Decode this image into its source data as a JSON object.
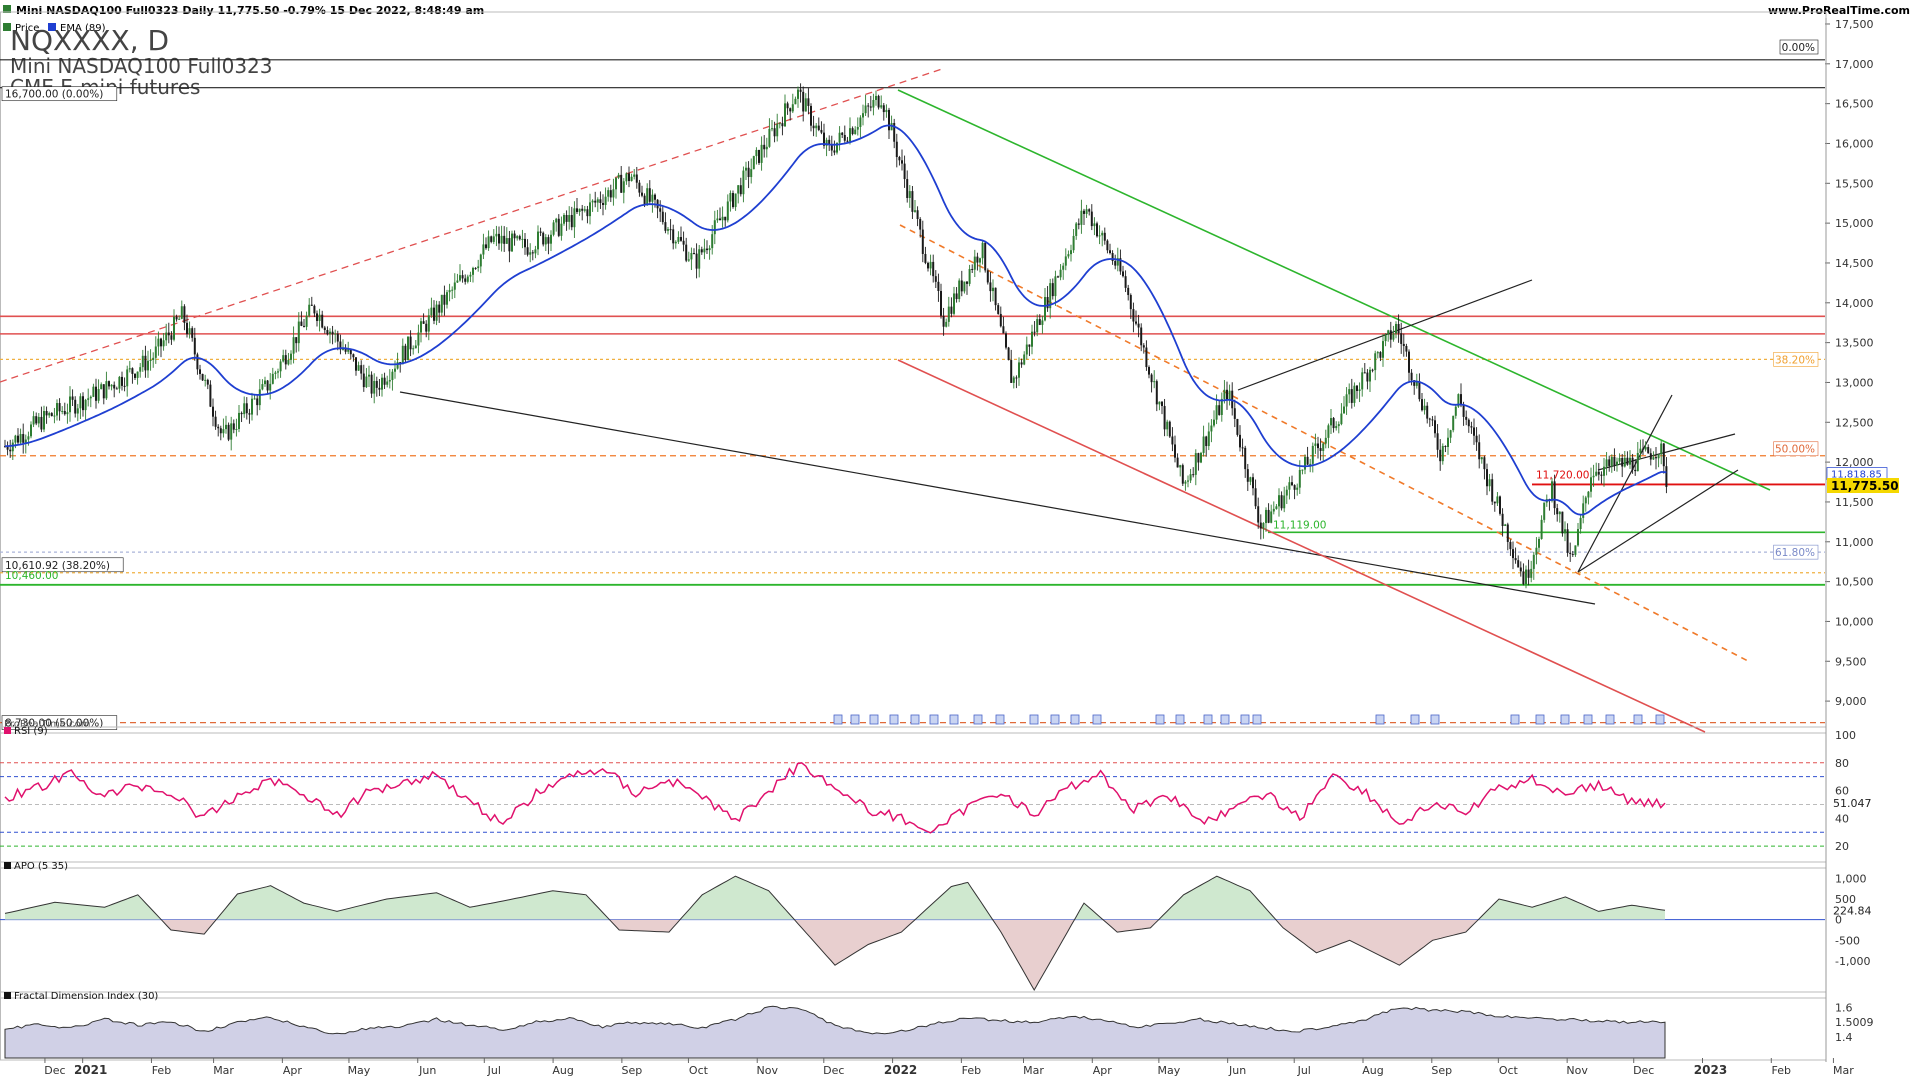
{
  "header": {
    "title_line": "Mini NASDAQ100 Full0323 Daily 11,775.50 -0.79% 15 Dec 2022, 8:48:49 am",
    "site": "www.ProRealTime.com",
    "legend_price": "Price",
    "legend_ema": "EMA (89)",
    "symbol": "NQXXXX, D",
    "name": "Mini NASDAQ100 Full0323",
    "subtitle": "CME E-mini futures",
    "watermark": "ProRealTime.com"
  },
  "colors": {
    "candle_up": "#2e7d32",
    "candle_down": "#1a1a1a",
    "ema": "#1f3fd1",
    "rsi": "#e0116d",
    "green_line": "#2db52d",
    "red_line": "#e05050",
    "orange_dash": "#f07a2a",
    "black_line": "#222222",
    "apo_pos_fill": "#cfe8cf",
    "apo_neg_fill": "#e8cfcf",
    "fdi_fill": "#d0d0e6"
  },
  "chart_data": [
    {
      "type": "candlestick",
      "panel": "price",
      "title": "NQXXXX, D",
      "subtitle": "Mini NASDAQ100 Full0323",
      "y_ticks": [
        "17,500",
        "17,000",
        "16,500",
        "16,000",
        "15,500",
        "15,000",
        "14,500",
        "14,000",
        "13,500",
        "13,000",
        "12,500",
        "12,000",
        "11,500",
        "11,000",
        "10,500",
        "10,000",
        "9,500",
        "9,000"
      ],
      "y_range": [
        8700,
        17550
      ],
      "x_ticks": [
        "Dec",
        "2021",
        "Feb",
        "Mar",
        "Apr",
        "May",
        "Jun",
        "Jul",
        "Aug",
        "Sep",
        "Oct",
        "Nov",
        "Dec",
        "2022",
        "Feb",
        "Mar",
        "Apr",
        "May",
        "Jun",
        "Jul",
        "Aug",
        "Sep",
        "Oct",
        "Nov",
        "Dec",
        "2023",
        "Feb",
        "Mar"
      ],
      "price_path": [
        [
          "2020-11-27",
          12200
        ],
        [
          "2020-12-15",
          12550
        ],
        [
          "2021-01-10",
          12900
        ],
        [
          "2021-02-01",
          13300
        ],
        [
          "2021-02-15",
          13850
        ],
        [
          "2021-03-05",
          12300
        ],
        [
          "2021-03-25",
          12950
        ],
        [
          "2021-04-15",
          13950
        ],
        [
          "2021-05-12",
          12900
        ],
        [
          "2021-06-01",
          13600
        ],
        [
          "2021-07-05",
          14800
        ],
        [
          "2021-07-20",
          14700
        ],
        [
          "2021-08-15",
          15150
        ],
        [
          "2021-09-05",
          15600
        ],
        [
          "2021-10-04",
          14500
        ],
        [
          "2021-10-25",
          15500
        ],
        [
          "2021-11-19",
          16650
        ],
        [
          "2021-12-03",
          15900
        ],
        [
          "2021-12-27",
          16600
        ],
        [
          "2022-01-24",
          13800
        ],
        [
          "2022-02-10",
          14700
        ],
        [
          "2022-02-24",
          13000
        ],
        [
          "2022-03-29",
          15200
        ],
        [
          "2022-04-15",
          14300
        ],
        [
          "2022-05-12",
          11700
        ],
        [
          "2022-06-01",
          12900
        ],
        [
          "2022-06-16",
          11200
        ],
        [
          "2022-07-05",
          11900
        ],
        [
          "2022-08-16",
          13700
        ],
        [
          "2022-09-05",
          12100
        ],
        [
          "2022-09-13",
          12800
        ],
        [
          "2022-10-13",
          10500
        ],
        [
          "2022-10-25",
          11700
        ],
        [
          "2022-11-03",
          10700
        ],
        [
          "2022-11-12",
          11900
        ],
        [
          "2022-12-01",
          12000
        ],
        [
          "2022-12-13",
          12200
        ],
        [
          "2022-12-15",
          11775.5
        ]
      ],
      "ema_period": 89,
      "ema_last": "11,818.85",
      "last_price": "11,775.50",
      "annotations": {
        "fib_top": "16,700.00 (0.00%)",
        "fib_top_tag": "0.00%",
        "fib_382": "38.20%",
        "fib_500": "50.00%",
        "fib_618": "61.80%",
        "left_382": "10,610.92 (38.20%)",
        "left_10460": "10,460.00",
        "left_bottom": "8,730.00 (50.00%)",
        "level_11720": "11,720.00",
        "level_11119": "11,119.00"
      },
      "levels": {
        "fib_top": 16700,
        "fib_382": 13290,
        "fib_500": 12080,
        "fib_618": 10870,
        "red_upper": 13830,
        "red_lower": 13610,
        "red_short": 11720,
        "green_11119": 11119,
        "green_10460": 10460,
        "orange_10611": 10611,
        "left_8730": 8730,
        "top_black": 17050
      }
    },
    {
      "type": "line",
      "panel": "rsi",
      "title": "RSI (9)",
      "y_ticks": [
        "100",
        "80",
        "60",
        "40",
        "20"
      ],
      "y_range": [
        10,
        100
      ],
      "levels": [
        80,
        70,
        30,
        20
      ],
      "last": "51.047",
      "path": [
        [
          0,
          55
        ],
        [
          0.02,
          62
        ],
        [
          0.04,
          72
        ],
        [
          0.06,
          56
        ],
        [
          0.08,
          64
        ],
        [
          0.1,
          58
        ],
        [
          0.12,
          40
        ],
        [
          0.14,
          56
        ],
        [
          0.16,
          68
        ],
        [
          0.18,
          58
        ],
        [
          0.2,
          42
        ],
        [
          0.22,
          60
        ],
        [
          0.24,
          66
        ],
        [
          0.26,
          72
        ],
        [
          0.28,
          52
        ],
        [
          0.3,
          36
        ],
        [
          0.32,
          58
        ],
        [
          0.34,
          70
        ],
        [
          0.36,
          76
        ],
        [
          0.38,
          58
        ],
        [
          0.4,
          68
        ],
        [
          0.42,
          56
        ],
        [
          0.44,
          38
        ],
        [
          0.46,
          60
        ],
        [
          0.48,
          80
        ],
        [
          0.5,
          62
        ],
        [
          0.52,
          46
        ],
        [
          0.54,
          40
        ],
        [
          0.56,
          30
        ],
        [
          0.58,
          48
        ],
        [
          0.6,
          60
        ],
        [
          0.62,
          42
        ],
        [
          0.64,
          62
        ],
        [
          0.66,
          72
        ],
        [
          0.68,
          46
        ],
        [
          0.7,
          58
        ],
        [
          0.72,
          38
        ],
        [
          0.74,
          46
        ],
        [
          0.76,
          58
        ],
        [
          0.78,
          40
        ],
        [
          0.8,
          72
        ],
        [
          0.82,
          58
        ],
        [
          0.84,
          36
        ],
        [
          0.86,
          50
        ],
        [
          0.88,
          44
        ],
        [
          0.9,
          62
        ],
        [
          0.92,
          68
        ],
        [
          0.94,
          58
        ],
        [
          0.96,
          64
        ],
        [
          0.98,
          52
        ],
        [
          1,
          51
        ]
      ]
    },
    {
      "type": "area",
      "panel": "apo",
      "title": "APO (5 35)",
      "y_ticks": [
        "1,000",
        "500",
        "0",
        "-500",
        "-1,000"
      ],
      "y_range": [
        -1700,
        1200
      ],
      "last": "224.84",
      "path": [
        [
          0,
          150
        ],
        [
          0.03,
          420
        ],
        [
          0.06,
          300
        ],
        [
          0.08,
          600
        ],
        [
          0.1,
          -250
        ],
        [
          0.12,
          -350
        ],
        [
          0.14,
          620
        ],
        [
          0.16,
          820
        ],
        [
          0.18,
          400
        ],
        [
          0.2,
          200
        ],
        [
          0.23,
          500
        ],
        [
          0.26,
          650
        ],
        [
          0.28,
          300
        ],
        [
          0.3,
          450
        ],
        [
          0.33,
          700
        ],
        [
          0.35,
          600
        ],
        [
          0.37,
          -250
        ],
        [
          0.4,
          -300
        ],
        [
          0.42,
          600
        ],
        [
          0.44,
          1050
        ],
        [
          0.46,
          700
        ],
        [
          0.48,
          -200
        ],
        [
          0.5,
          -1100
        ],
        [
          0.52,
          -600
        ],
        [
          0.54,
          -300
        ],
        [
          0.57,
          800
        ],
        [
          0.58,
          900
        ],
        [
          0.6,
          -300
        ],
        [
          0.62,
          -1700
        ],
        [
          0.63,
          -1000
        ],
        [
          0.65,
          400
        ],
        [
          0.67,
          -300
        ],
        [
          0.69,
          -200
        ],
        [
          0.71,
          600
        ],
        [
          0.73,
          1050
        ],
        [
          0.75,
          700
        ],
        [
          0.77,
          -200
        ],
        [
          0.79,
          -800
        ],
        [
          0.81,
          -500
        ],
        [
          0.84,
          -1100
        ],
        [
          0.86,
          -500
        ],
        [
          0.88,
          -300
        ],
        [
          0.9,
          500
        ],
        [
          0.92,
          300
        ],
        [
          0.94,
          550
        ],
        [
          0.96,
          200
        ],
        [
          0.98,
          350
        ],
        [
          1,
          225
        ]
      ]
    },
    {
      "type": "area",
      "panel": "fdi",
      "title": "Fractal Dimension Index (30)",
      "y_ticks": [
        "1.6",
        "1.5009",
        "1.4"
      ],
      "y_range": [
        1.3,
        1.65
      ],
      "last": "1.5009",
      "path": [
        [
          0,
          1.45
        ],
        [
          0.02,
          1.49
        ],
        [
          0.04,
          1.46
        ],
        [
          0.06,
          1.52
        ],
        [
          0.08,
          1.48
        ],
        [
          0.1,
          1.5
        ],
        [
          0.12,
          1.44
        ],
        [
          0.14,
          1.5
        ],
        [
          0.16,
          1.53
        ],
        [
          0.18,
          1.47
        ],
        [
          0.2,
          1.42
        ],
        [
          0.22,
          1.46
        ],
        [
          0.24,
          1.47
        ],
        [
          0.26,
          1.52
        ],
        [
          0.28,
          1.48
        ],
        [
          0.3,
          1.45
        ],
        [
          0.32,
          1.5
        ],
        [
          0.34,
          1.53
        ],
        [
          0.36,
          1.47
        ],
        [
          0.38,
          1.5
        ],
        [
          0.4,
          1.49
        ],
        [
          0.42,
          1.46
        ],
        [
          0.44,
          1.52
        ],
        [
          0.46,
          1.6
        ],
        [
          0.48,
          1.59
        ],
        [
          0.5,
          1.48
        ],
        [
          0.52,
          1.42
        ],
        [
          0.54,
          1.44
        ],
        [
          0.56,
          1.49
        ],
        [
          0.58,
          1.53
        ],
        [
          0.6,
          1.51
        ],
        [
          0.62,
          1.5
        ],
        [
          0.64,
          1.54
        ],
        [
          0.66,
          1.52
        ],
        [
          0.68,
          1.47
        ],
        [
          0.7,
          1.49
        ],
        [
          0.72,
          1.52
        ],
        [
          0.74,
          1.49
        ],
        [
          0.76,
          1.46
        ],
        [
          0.78,
          1.44
        ],
        [
          0.8,
          1.48
        ],
        [
          0.82,
          1.52
        ],
        [
          0.84,
          1.6
        ],
        [
          0.86,
          1.58
        ],
        [
          0.88,
          1.57
        ],
        [
          0.9,
          1.54
        ],
        [
          0.92,
          1.53
        ],
        [
          0.94,
          1.52
        ],
        [
          0.96,
          1.51
        ],
        [
          0.98,
          1.5
        ],
        [
          1,
          1.5009
        ]
      ]
    }
  ]
}
